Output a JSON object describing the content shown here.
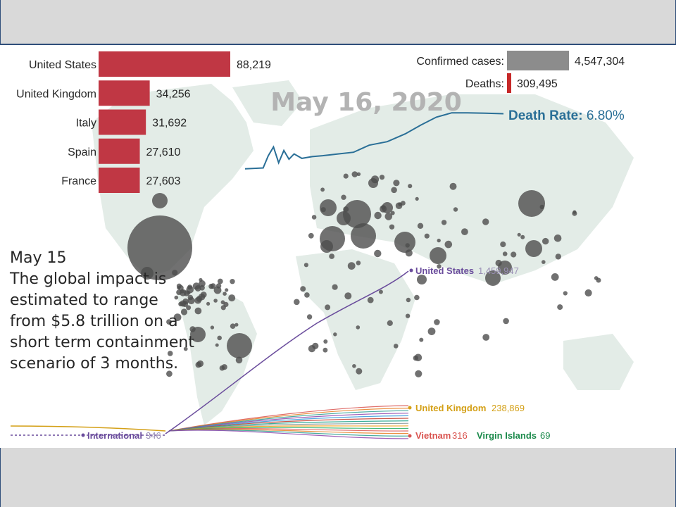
{
  "note": {
    "lines": [
      "May 15",
      "The global impact is",
      "estimated to range",
      "from $5.8 trillion on a",
      "short term containment",
      "scenario of 3 months."
    ]
  },
  "chart_data": [
    {
      "type": "bar",
      "orientation": "horizontal",
      "categories": [
        "United States",
        "United Kingdom",
        "Italy",
        "Spain",
        "France"
      ],
      "values": [
        88219,
        34256,
        31692,
        27610,
        27603
      ],
      "value_labels": [
        "88,219",
        "34,256",
        "31,692",
        "27,610",
        "27,603"
      ],
      "color": "#c03744"
    },
    {
      "type": "bar",
      "orientation": "horizontal",
      "categories": [
        "Confirmed cases:",
        "Deaths:"
      ],
      "values": [
        4547304,
        309495
      ],
      "value_labels": [
        "4,547,304",
        "309,495"
      ],
      "colors": [
        "#8c8c8c",
        "#c62828"
      ]
    },
    {
      "type": "line",
      "title": "May 16, 2020",
      "series": [
        {
          "name": "Death Rate",
          "label": "Death Rate:",
          "value_label": "6.80%",
          "final": 6.8,
          "color": "#2a6f97"
        }
      ],
      "points": [
        {
          "p": 0,
          "v": 0.5
        },
        {
          "p": 0.07,
          "v": 0.6
        },
        {
          "p": 0.09,
          "v": 2.0
        },
        {
          "p": 0.11,
          "v": 3.0
        },
        {
          "p": 0.13,
          "v": 1.2
        },
        {
          "p": 0.15,
          "v": 2.6
        },
        {
          "p": 0.17,
          "v": 1.6
        },
        {
          "p": 0.19,
          "v": 2.2
        },
        {
          "p": 0.22,
          "v": 1.7
        },
        {
          "p": 0.26,
          "v": 1.9
        },
        {
          "p": 0.3,
          "v": 2.0
        },
        {
          "p": 0.36,
          "v": 2.2
        },
        {
          "p": 0.42,
          "v": 2.4
        },
        {
          "p": 0.48,
          "v": 3.2
        },
        {
          "p": 0.55,
          "v": 3.6
        },
        {
          "p": 0.62,
          "v": 4.5
        },
        {
          "p": 0.68,
          "v": 5.5
        },
        {
          "p": 0.74,
          "v": 6.4
        },
        {
          "p": 0.8,
          "v": 6.9
        },
        {
          "p": 0.86,
          "v": 6.9
        },
        {
          "p": 0.93,
          "v": 6.85
        },
        {
          "p": 1,
          "v": 6.8
        }
      ]
    },
    {
      "type": "line",
      "series": [
        {
          "name": "United States",
          "value_label": "1,459,947",
          "color": "#6a4c9c"
        },
        {
          "name": "United Kingdom",
          "value_label": "238,869",
          "color": "#d4a017"
        },
        {
          "name": "International",
          "value_label": "346",
          "color": "#6a4c9c"
        },
        {
          "name": "Vietnam",
          "value_label": "316",
          "color": "#d9534f"
        },
        {
          "name": "Virgin Islands",
          "value_label": "69",
          "color": "#1b8a4b"
        }
      ]
    }
  ]
}
